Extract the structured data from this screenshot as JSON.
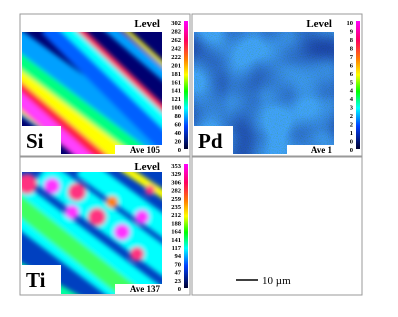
{
  "panels": [
    {
      "element": "Si",
      "level": "Level",
      "average": "Ave 105",
      "scale": [
        302,
        282,
        262,
        242,
        222,
        201,
        181,
        161,
        141,
        121,
        100,
        80,
        60,
        40,
        20,
        0
      ]
    },
    {
      "element": "Pd",
      "level": "Level",
      "average": "Ave 1",
      "scale": [
        10,
        9,
        8,
        8,
        7,
        6,
        6,
        5,
        4,
        4,
        3,
        2,
        2,
        1,
        0,
        0
      ]
    },
    {
      "element": "Ti",
      "level": "Level",
      "average": "Ave 137",
      "scale": [
        353,
        329,
        306,
        282,
        259,
        235,
        212,
        188,
        164,
        141,
        117,
        94,
        70,
        47,
        23,
        0
      ]
    }
  ],
  "scale_bar": "10 µm"
}
